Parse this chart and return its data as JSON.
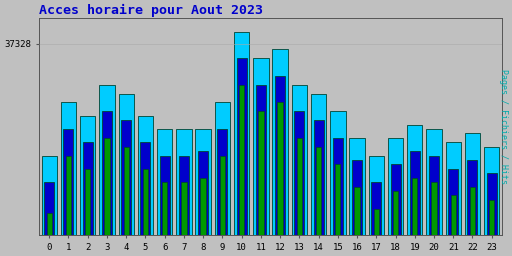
{
  "title": "Acces horaire pour Aout 2023",
  "title_color": "#0000cc",
  "ylabel": "Pages / Fichiers / Hits",
  "ylabel_color": "#00aaaa",
  "background_color": "#c0c0c0",
  "hours": [
    0,
    1,
    2,
    3,
    4,
    5,
    6,
    7,
    8,
    9,
    10,
    11,
    12,
    13,
    14,
    15,
    16,
    17,
    18,
    19,
    20,
    21,
    22,
    23
  ],
  "cyan_vals": [
    34800,
    36000,
    35700,
    36400,
    36200,
    35700,
    35400,
    35400,
    35400,
    36000,
    37600,
    37000,
    37200,
    36400,
    36200,
    35800,
    35200,
    34800,
    35200,
    35500,
    35400,
    35100,
    35300,
    35000
  ],
  "blue_vals": [
    34200,
    35400,
    35100,
    35800,
    35600,
    35100,
    34800,
    34800,
    34900,
    35400,
    37000,
    36400,
    36600,
    35800,
    35600,
    35200,
    34700,
    34200,
    34600,
    34900,
    34800,
    34500,
    34700,
    34400
  ],
  "green_vals": [
    33500,
    34800,
    34500,
    35200,
    35000,
    34500,
    34200,
    34200,
    34300,
    34800,
    36400,
    35800,
    36000,
    35200,
    35000,
    34600,
    34100,
    33600,
    34000,
    34300,
    34200,
    33900,
    34100,
    33800
  ],
  "cyan_color": "#00ccff",
  "blue_color": "#0000cc",
  "green_color": "#009900",
  "bar_edge_color": "#004433",
  "ylim_min": 33000,
  "ylim_max": 37900,
  "ytick_val": 37328,
  "bar_width": 0.8,
  "figsize": [
    5.12,
    2.56
  ],
  "dpi": 100
}
